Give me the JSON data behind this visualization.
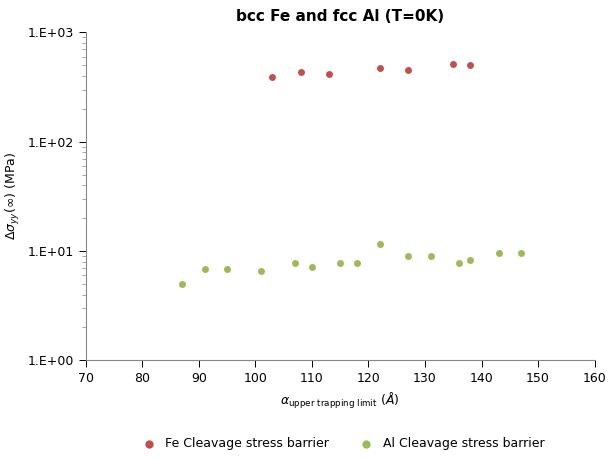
{
  "title": "bcc Fe and fcc Al (T=0K)",
  "xlim": [
    70,
    160
  ],
  "ylim_log": [
    1.0,
    1000.0
  ],
  "fe_x": [
    103,
    108,
    113,
    122,
    127,
    135,
    138
  ],
  "fe_y": [
    390,
    430,
    420,
    470,
    450,
    510,
    500
  ],
  "al_x": [
    87,
    91,
    95,
    101,
    107,
    110,
    115,
    118,
    122,
    127,
    131,
    136,
    138,
    143,
    147
  ],
  "al_y": [
    5.0,
    6.8,
    6.8,
    6.5,
    7.8,
    7.2,
    7.8,
    7.8,
    11.5,
    9.0,
    9.0,
    7.8,
    8.2,
    9.5,
    9.5
  ],
  "fe_color": "#c0504d",
  "al_color": "#9bbb59",
  "fe_label": "Fe Cleavage stress barrier",
  "al_label": "Al Cleavage stress barrier",
  "marker_size": 5,
  "xticks": [
    70,
    80,
    90,
    100,
    110,
    120,
    130,
    140,
    150,
    160
  ],
  "ytick_labels": [
    "1.E+00",
    "1.E+01",
    "1.E+02",
    "1.E+03"
  ],
  "ytick_vals": [
    1.0,
    10.0,
    100.0,
    1000.0
  ],
  "title_fontsize": 11,
  "axis_fontsize": 9,
  "tick_fontsize": 9,
  "legend_fontsize": 9,
  "bg_color": "#ffffff"
}
